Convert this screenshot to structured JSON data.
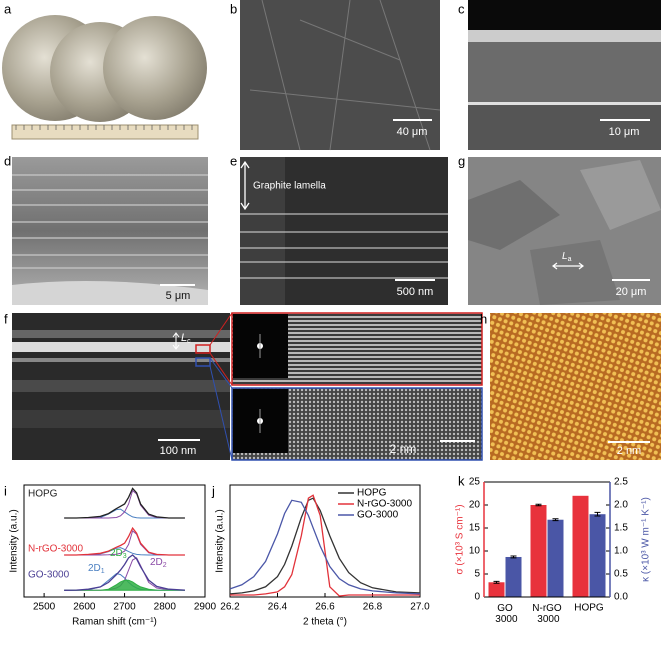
{
  "panels": {
    "a": {
      "label": "a"
    },
    "b": {
      "label": "b",
      "scale_bar": "40 μm"
    },
    "c": {
      "label": "c",
      "scale_bar": "10 μm"
    },
    "d": {
      "label": "d",
      "scale_bar": "5 μm"
    },
    "e": {
      "label": "e",
      "scale_bar": "500 nm",
      "annotation": "Graphite lamella"
    },
    "g": {
      "label": "g",
      "scale_bar": "20 μm",
      "annotation": {
        "text": "L",
        "subscript": "a"
      }
    },
    "f": {
      "label": "f",
      "scale_bar": "100 nm",
      "inset_scale_bar": "2 nm",
      "annotation": {
        "text": "L",
        "subscript": "c"
      }
    },
    "h": {
      "label": "h",
      "scale_bar": "2 nm"
    }
  },
  "chart_data": [
    {
      "panel_label": "i",
      "type": "line",
      "x_label": "Raman shift (cm⁻¹)",
      "y_label": "Intensity (a.u.)",
      "x": [
        2550,
        2580,
        2610,
        2640,
        2660,
        2680,
        2690,
        2700,
        2710,
        2720,
        2730,
        2740,
        2760,
        2780,
        2810,
        2850
      ],
      "xlim": [
        2450,
        2900
      ],
      "xticks": [
        2500,
        2600,
        2700,
        2800,
        2900
      ],
      "ylim": [
        0,
        10
      ],
      "series": [
        {
          "name": "HOPG",
          "color": "#222222",
          "values": [
            7.05,
            7.05,
            7.1,
            7.2,
            7.45,
            7.9,
            8.1,
            8.3,
            8.9,
            9.7,
            9.3,
            8.3,
            7.4,
            7.15,
            7.05,
            7.05
          ]
        },
        {
          "name": "N-rGO-3000",
          "color": "#e2323a",
          "values": [
            3.75,
            3.75,
            3.8,
            3.9,
            4.1,
            4.45,
            4.6,
            4.8,
            5.4,
            6.15,
            5.7,
            4.8,
            4.0,
            3.8,
            3.75,
            3.75
          ]
        },
        {
          "name": "GO-3000",
          "color": "#4b3f94",
          "values": [
            0.6,
            0.62,
            0.7,
            0.9,
            1.3,
            2.0,
            2.4,
            2.9,
            3.5,
            3.75,
            3.4,
            2.7,
            1.5,
            0.95,
            0.7,
            0.62
          ]
        }
      ],
      "components": [
        {
          "color": "#4a7fc1",
          "values": [
            7.05,
            7.05,
            7.05,
            7.1,
            7.4,
            7.8,
            7.85,
            7.6,
            7.35,
            7.15,
            7.08,
            7.05,
            7.05,
            7.05,
            7.05,
            7.05
          ]
        },
        {
          "color": "#8a4aa6",
          "values": [
            7.05,
            7.05,
            7.05,
            7.05,
            7.05,
            7.1,
            7.25,
            7.6,
            8.3,
            9.5,
            9.2,
            8.2,
            7.3,
            7.1,
            7.05,
            7.05
          ]
        },
        {
          "color": "#4a7fc1",
          "values": [
            3.75,
            3.75,
            3.77,
            3.85,
            4.05,
            4.35,
            4.4,
            4.25,
            4.05,
            3.9,
            3.8,
            3.77,
            3.75,
            3.75,
            3.75,
            3.75
          ]
        },
        {
          "color": "#8a4aa6",
          "values": [
            3.75,
            3.75,
            3.75,
            3.75,
            3.77,
            3.82,
            3.9,
            4.1,
            4.7,
            5.9,
            5.6,
            4.7,
            3.95,
            3.78,
            3.75,
            3.75
          ]
        },
        {
          "color": "#4a7fc1",
          "label": {
            "text": "2D",
            "subscript": "1"
          },
          "values": [
            0.6,
            0.6,
            0.65,
            0.9,
            1.5,
            2.1,
            2.0,
            1.7,
            1.3,
            1.0,
            0.8,
            0.68,
            0.62,
            0.6,
            0.6,
            0.6
          ]
        },
        {
          "color": "#8a4aa6",
          "label": {
            "text": "2D",
            "subscript": "2"
          },
          "values": [
            0.6,
            0.6,
            0.6,
            0.6,
            0.65,
            0.8,
            1.0,
            1.5,
            2.4,
            3.3,
            3.5,
            2.8,
            1.3,
            0.8,
            0.65,
            0.6
          ]
        },
        {
          "color": "#2fae44",
          "fill": true,
          "label": {
            "text": "2D",
            "subscript": "3"
          },
          "values": [
            0.6,
            0.6,
            0.6,
            0.6,
            0.7,
            1.1,
            1.35,
            1.5,
            1.5,
            1.35,
            1.1,
            0.9,
            0.7,
            0.62,
            0.6,
            0.6
          ]
        }
      ]
    },
    {
      "panel_label": "j",
      "type": "line",
      "x_label": "2 theta (°)",
      "y_label": "Intensity (a.u.)",
      "legend": "upper right",
      "x": [
        26.2,
        26.25,
        26.3,
        26.35,
        26.4,
        26.43,
        26.46,
        26.5,
        26.53,
        26.55,
        26.58,
        26.62,
        26.66,
        26.7,
        26.75,
        26.8,
        26.9,
        27.0
      ],
      "xlim": [
        26.2,
        27.0
      ],
      "xticks": [
        26.2,
        26.4,
        26.6,
        26.8,
        {
          "value": 27,
          "label": "27.0"
        }
      ],
      "ylim": [
        0,
        1.1
      ],
      "series": [
        {
          "name": "HOPG",
          "color": "#333333",
          "values": [
            0.03,
            0.04,
            0.06,
            0.1,
            0.2,
            0.32,
            0.5,
            0.78,
            0.95,
            0.97,
            0.85,
            0.6,
            0.38,
            0.24,
            0.14,
            0.09,
            0.05,
            0.04
          ]
        },
        {
          "name": "N-rGO-3000",
          "color": "#e2323a",
          "values": [
            0.02,
            0.02,
            0.02,
            0.03,
            0.05,
            0.1,
            0.22,
            0.6,
            0.97,
            1.0,
            0.8,
            0.1,
            0.01,
            0.02,
            0.02,
            0.02,
            0.02,
            0.02
          ]
        },
        {
          "name": "GO-3000",
          "color": "#4b57a8",
          "values": [
            0.08,
            0.12,
            0.2,
            0.35,
            0.62,
            0.82,
            0.95,
            0.93,
            0.8,
            0.68,
            0.5,
            0.3,
            0.18,
            0.12,
            0.08,
            0.06,
            0.04,
            0.03
          ]
        }
      ]
    },
    {
      "panel_label": "k",
      "type": "bar",
      "y_label": "σ (×10³ S cm⁻¹)",
      "y2_label": "κ (×10³ W m⁻¹ K⁻¹)",
      "categories": [
        "GO 3000",
        "N-rGO 3000",
        "HOPG"
      ],
      "ylim": [
        0,
        25
      ],
      "yticks": [
        0,
        5,
        10,
        15,
        20,
        25
      ],
      "y2lim": [
        0,
        2.5
      ],
      "y2ticks": [
        {
          "value": 0,
          "label": "0.0"
        },
        0.5,
        {
          "value": 1,
          "label": "1.0"
        },
        1.5,
        {
          "value": 2,
          "label": "2.0"
        },
        2.5
      ],
      "series": [
        {
          "color": "#e8323c",
          "values": [
            3.2,
            20,
            22
          ],
          "errors": [
            0.2,
            0.15,
            null
          ]
        },
        {
          "color": "#4a56a6",
          "axis": "y2",
          "values": [
            0.87,
            1.68,
            1.8
          ],
          "errors": [
            0.02,
            0.02,
            0.04
          ]
        }
      ]
    }
  ]
}
